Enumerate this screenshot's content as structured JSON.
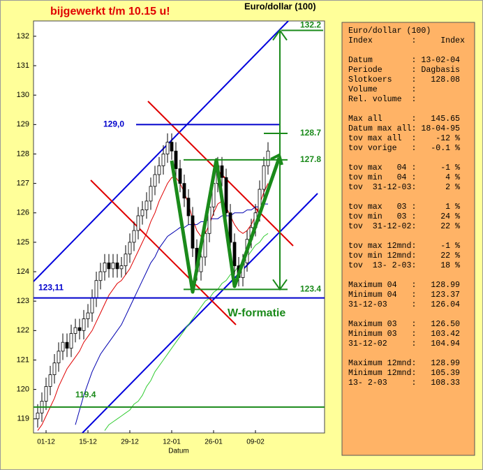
{
  "chart_data": {
    "type": "candlestick",
    "title": "Euro/dollar (100)",
    "subtitle": "bijgewerkt t/m 10.15 u!",
    "xlabel": "Datum",
    "ylim": [
      118.52,
      132.52
    ],
    "yticks": [
      119,
      120,
      121,
      122,
      123,
      124,
      125,
      126,
      127,
      128,
      129,
      130,
      131,
      132
    ],
    "xlim": [
      -1,
      68.5
    ],
    "xticks": [
      {
        "value": 2,
        "label": "01-12"
      },
      {
        "value": 12,
        "label": "15-12"
      },
      {
        "value": 22,
        "label": "29-12"
      },
      {
        "value": 32,
        "label": "12-01"
      },
      {
        "value": 42,
        "label": "26-01"
      },
      {
        "value": 52,
        "label": "09-02"
      }
    ],
    "candles": {
      "open": [
        119.0,
        119.2,
        119.6,
        120.1,
        120.5,
        120.9,
        121.3,
        121.6,
        121.4,
        121.9,
        122.1,
        122.0,
        122.4,
        122.6,
        123.1,
        123.7,
        124.0,
        124.3,
        124.1,
        124.3,
        124.1,
        124.2,
        124.6,
        125.0,
        125.4,
        125.9,
        126.1,
        126.4,
        126.9,
        127.3,
        127.6,
        128.0,
        128.4,
        128.1,
        127.5,
        127.0,
        126.5,
        125.9,
        124.8,
        124.0,
        124.5,
        125.3,
        126.2,
        127.0,
        127.6,
        127.2,
        126.0,
        125.0,
        124.2,
        123.8,
        124.3,
        125.1,
        125.5,
        126.0,
        126.8,
        127.6
      ],
      "high": [
        119.5,
        119.9,
        120.4,
        120.8,
        121.2,
        121.6,
        121.9,
        121.9,
        122.2,
        122.4,
        122.4,
        122.7,
        122.9,
        123.4,
        124.0,
        124.3,
        124.6,
        124.6,
        124.6,
        124.6,
        124.5,
        124.9,
        125.3,
        125.7,
        126.2,
        126.4,
        126.7,
        127.2,
        127.6,
        127.9,
        128.3,
        128.7,
        128.7,
        128.4,
        127.8,
        127.3,
        126.8,
        126.2,
        125.1,
        124.8,
        125.6,
        126.5,
        127.3,
        127.9,
        127.9,
        127.5,
        126.3,
        125.3,
        124.5,
        124.6,
        125.4,
        125.8,
        126.3,
        127.1,
        127.9,
        128.4
      ],
      "low": [
        118.7,
        118.9,
        119.3,
        119.8,
        120.2,
        120.6,
        121.0,
        121.1,
        121.1,
        121.6,
        121.7,
        121.7,
        122.1,
        122.3,
        122.8,
        123.4,
        123.7,
        123.8,
        123.8,
        123.8,
        123.8,
        123.9,
        124.3,
        124.7,
        125.1,
        125.6,
        125.8,
        126.1,
        126.6,
        127.0,
        127.3,
        127.7,
        127.8,
        127.2,
        126.7,
        126.2,
        125.6,
        124.5,
        123.7,
        123.7,
        124.2,
        125.0,
        125.9,
        126.7,
        126.9,
        125.7,
        124.7,
        123.9,
        123.5,
        123.5,
        124.0,
        124.8,
        125.2,
        125.7,
        126.5,
        127.3
      ],
      "close": [
        119.2,
        119.6,
        120.1,
        120.5,
        120.9,
        121.3,
        121.6,
        121.4,
        121.9,
        122.1,
        122.0,
        122.4,
        122.6,
        123.1,
        123.7,
        124.0,
        124.3,
        124.1,
        124.3,
        124.1,
        124.2,
        124.6,
        125.0,
        125.4,
        125.9,
        126.1,
        126.4,
        126.9,
        127.3,
        127.6,
        128.0,
        128.4,
        128.1,
        127.5,
        127.0,
        126.5,
        125.9,
        124.8,
        124.0,
        124.5,
        125.3,
        126.2,
        127.0,
        127.6,
        127.2,
        126.0,
        125.0,
        124.2,
        123.8,
        124.3,
        125.1,
        125.5,
        126.0,
        126.8,
        127.6,
        128.1
      ]
    },
    "lines": [
      {
        "color": "#e00000",
        "values": [
          118.6,
          118.8,
          119.1,
          119.4,
          119.7,
          120.1,
          120.4,
          120.7,
          120.9,
          121.1,
          121.3,
          121.6,
          121.8,
          122.0,
          122.3,
          122.6,
          122.9,
          123.2,
          123.4,
          123.6,
          123.7,
          123.9,
          124.1,
          124.4,
          124.7,
          125.0,
          125.3,
          125.7,
          126.0,
          126.4,
          126.7,
          127.0,
          127.2,
          127.2,
          127.0,
          126.7,
          126.3,
          125.8,
          125.4,
          125.2,
          125.3,
          125.6,
          126.0,
          126.3,
          126.4,
          126.2,
          125.9,
          125.6,
          125.4,
          125.3,
          125.4,
          125.6,
          125.9,
          126.3,
          126.7,
          127.0
        ]
      },
      {
        "color": "#0000b0",
        "values": [
          null,
          null,
          null,
          null,
          null,
          null,
          null,
          null,
          null,
          118.8,
          119.3,
          119.8,
          120.2,
          120.6,
          120.9,
          121.2,
          121.4,
          121.6,
          121.8,
          122.0,
          122.2,
          122.5,
          122.8,
          123.1,
          123.4,
          123.7,
          124.0,
          124.3,
          124.5,
          124.8,
          125.0,
          125.2,
          125.3,
          125.4,
          125.5,
          125.5,
          125.6,
          125.6,
          125.6,
          125.7,
          125.7,
          125.8,
          125.8,
          125.8,
          125.9,
          125.9,
          125.9,
          126.0,
          126.0,
          126.0,
          126.1,
          126.1,
          126.2,
          126.2,
          126.3,
          126.3
        ]
      },
      {
        "color": "#33cc33",
        "values": [
          null,
          null,
          null,
          null,
          null,
          null,
          null,
          null,
          null,
          null,
          null,
          null,
          null,
          null,
          null,
          null,
          118.6,
          118.8,
          118.9,
          119.0,
          119.1,
          119.2,
          119.3,
          119.5,
          119.6,
          119.8,
          120.1,
          120.3,
          120.6,
          120.8,
          121.0,
          121.2,
          121.4,
          121.6,
          121.8,
          122.0,
          122.2,
          122.4,
          122.6,
          122.8,
          123.0,
          123.1,
          123.3,
          123.4,
          123.6,
          123.7,
          123.9,
          124.0,
          124.2,
          124.3,
          124.5,
          124.7,
          124.9,
          125.0,
          125.2,
          125.3
        ]
      }
    ],
    "levels": [
      {
        "value": 132.2,
        "color": "#1a8a1a"
      },
      {
        "value": 128.7,
        "color": "#1a8a1a"
      },
      {
        "value": 127.8,
        "color": "#1a8a1a"
      },
      {
        "value": 123.4,
        "color": "#1a8a1a"
      },
      {
        "value": 119.4,
        "color": "#1a8a1a"
      },
      {
        "value": 129.0,
        "label": "129,0",
        "color": "#0000cc"
      },
      {
        "value": 123.11,
        "label": "123,11",
        "color": "#0000cc"
      }
    ],
    "annotation": {
      "text": "W-formatie",
      "color": "#1a8a1a"
    },
    "subtitle_color": "#e00000"
  },
  "info_panel": {
    "groups": [
      [
        "Euro/dollar (100)",
        "Index        :     Index"
      ],
      [
        "Datum        : 13-02-04",
        "Periode      : Dagbasis",
        "Slotkoers    :   128.08",
        "Volume       :",
        "Rel. volume  :"
      ],
      [
        "Max all      :   145.65",
        "Datum max all: 18-04-95",
        "tov max all  :    -12 %",
        "tov vorige   :   -0.1 %"
      ],
      [
        "tov max   04 :     -1 %",
        "tov min   04 :      4 %",
        "tov  31-12-03:      2 %"
      ],
      [
        "tov max   03 :      1 %",
        "tov min   03 :     24 %",
        "tov  31-12-02:     22 %"
      ],
      [
        "tov max 12mnd:     -1 %",
        "tov min 12mnd:     22 %",
        "tov  13- 2-03:     18 %"
      ],
      [
        "Maximum 04   :   128.99",
        "Minimum 04   :   123.37",
        "31-12-03     :   126.04"
      ],
      [
        "Maximum 03   :   126.50",
        "Minimum 03   :   103.42",
        "31-12-02     :   104.94"
      ],
      [
        "Maximum 12mnd:   128.99",
        "Minimum 12mnd:   105.39",
        "13- 2-03     :   108.33"
      ]
    ]
  }
}
